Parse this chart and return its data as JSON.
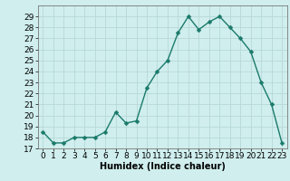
{
  "x": [
    0,
    1,
    2,
    3,
    4,
    5,
    6,
    7,
    8,
    9,
    10,
    11,
    12,
    13,
    14,
    15,
    16,
    17,
    18,
    19,
    20,
    21,
    22,
    23
  ],
  "y": [
    18.5,
    17.5,
    17.5,
    18.0,
    18.0,
    18.0,
    18.5,
    20.3,
    19.3,
    19.5,
    22.5,
    24.0,
    25.0,
    27.5,
    29.0,
    27.8,
    28.5,
    29.0,
    28.0,
    27.0,
    25.8,
    23.0,
    21.0,
    17.5
  ],
  "line_color": "#1a7a6a",
  "marker": "D",
  "marker_size": 2.5,
  "bg_color": "#d0eeee",
  "grid_color": "#b8d8d8",
  "xlabel": "Humidex (Indice chaleur)",
  "ylim": [
    17,
    30
  ],
  "xlim": [
    -0.5,
    23.5
  ],
  "yticks": [
    17,
    18,
    19,
    20,
    21,
    22,
    23,
    24,
    25,
    26,
    27,
    28,
    29
  ],
  "xticks": [
    0,
    1,
    2,
    3,
    4,
    5,
    6,
    7,
    8,
    9,
    10,
    11,
    12,
    13,
    14,
    15,
    16,
    17,
    18,
    19,
    20,
    21,
    22,
    23
  ],
  "axis_fontsize": 7,
  "tick_fontsize": 6.5
}
